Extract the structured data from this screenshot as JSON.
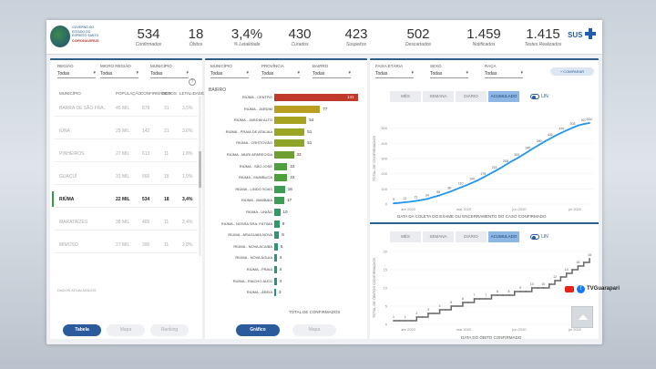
{
  "header": {
    "logo_text": "GOVERNO DO ESTADO DO ESPÍRITO SANTO",
    "logo_sub": "CORONAVÍRUS",
    "kpis": [
      {
        "value": "534",
        "label": "Confirmados"
      },
      {
        "value": "18",
        "label": "Óbitos"
      },
      {
        "value": "3,4%",
        "label": "% Letalidade"
      },
      {
        "value": "430",
        "label": "Curados"
      },
      {
        "value": "423",
        "label": "Suspeitos"
      },
      {
        "value": "502",
        "label": "Descartados"
      },
      {
        "value": "1.459",
        "label": "Notificados"
      },
      {
        "value": "1.415",
        "label": "Testes Realizados"
      }
    ],
    "sus_label": "SUS"
  },
  "left_panel": {
    "filters": [
      {
        "label": "REGIÃO",
        "value": "Todas"
      },
      {
        "label": "MICRO REGIÃO",
        "value": "Todas"
      },
      {
        "label": "MUNICÍPIO",
        "value": "Todas"
      }
    ],
    "columns": [
      "MUNICÍPIO",
      "POPULAÇÃO",
      "CONFIRMADOS",
      "ÓBITOS",
      "LETALIDADE"
    ],
    "rows": [
      {
        "name": "BARRA DE SÃO FRA...",
        "pop": "45 MIL",
        "conf": "878",
        "deaths": "31",
        "rate": "3,5%",
        "selected": false
      },
      {
        "name": "IÚNA",
        "pop": "29 MIL",
        "conf": "142",
        "deaths": "21",
        "rate": "3,6%",
        "selected": false
      },
      {
        "name": "PINHEIROS",
        "pop": "27 MIL",
        "conf": "613",
        "deaths": "11",
        "rate": "1,8%",
        "selected": false
      },
      {
        "name": "GUAÇUÍ",
        "pop": "31 MIL",
        "conf": "560",
        "deaths": "15",
        "rate": "1,9%",
        "selected": false
      },
      {
        "name": "RIÚMA",
        "pop": "22 MIL",
        "conf": "534",
        "deaths": "18",
        "rate": "3,4%",
        "selected": true
      },
      {
        "name": "MARATAÍZES",
        "pop": "38 MIL",
        "conf": "465",
        "deaths": "11",
        "rate": "2,4%",
        "selected": false
      },
      {
        "name": "MIMOSO",
        "pop": "27 MIL",
        "conf": "390",
        "deaths": "11",
        "rate": "2,8%",
        "selected": false
      }
    ],
    "footer_note": "DADOS ATUALIZADOS",
    "tabs": [
      "Tabela",
      "Mapa",
      "Ranking"
    ]
  },
  "middle_panel": {
    "filters": [
      {
        "label": "MUNICÍPIO",
        "value": "Todas"
      },
      {
        "label": "PROVÍNCIA",
        "value": "Todas"
      },
      {
        "label": "BAIRRO",
        "value": "Todas"
      }
    ],
    "section_title": "BAIRRO",
    "footer_label": "TOTAL DE CONFIRMADOS",
    "tabs": [
      "Gráfico",
      "Mapa"
    ]
  },
  "right_panel": {
    "filters": [
      {
        "label": "FAIXA ETÁRIA",
        "value": "Todas"
      },
      {
        "label": "SEXO",
        "value": "Todas"
      },
      {
        "label": "RAÇA",
        "value": "Todas"
      }
    ],
    "add_button": "+ COMPARAR",
    "top_tabs": [
      "MÊS",
      "SEMANA",
      "DIÁRIO",
      "ACUMULADO"
    ],
    "top_toggle": "LIN",
    "top_xlabel": "DATA DA COLETA DO EXAME OU ENCERRAMENTO DO CASO CONFIRMADO",
    "top_ylabel": "TOTAL DE CONFIRMADOS",
    "bottom_tabs": [
      "MÊS",
      "SEMANA",
      "DIÁRIO",
      "ACUMULADO"
    ],
    "bottom_toggle": "LIN",
    "bottom_xlabel": "DATA DO ÓBITO CONFIRMADO",
    "bottom_ylabel": "TOTAL DE ÓBITOS CONFIRMADOS"
  },
  "social": {
    "handle": "TVGuarapari"
  },
  "colors": {
    "header_blue": "#2d5f8b",
    "button_blue": "#2a5b9c",
    "bar_red": "#c0392b",
    "line_blue": "#2196f3",
    "line_gray": "#666666"
  },
  "chart_data": [
    {
      "type": "bar",
      "title": "BAIRRO",
      "xlabel": "TOTAL DE CONFIRMADOS",
      "categories": [
        "RIÚMA - CENTRO",
        "RIÚMA - JARDIM",
        "RIÚMA - JARDIM ALTO",
        "RIÚMA - PRAIA DE ATALAIA",
        "RIÚMA - CRISTOVÃO",
        "RIÚMA - MURI APARECIDA",
        "RIÚMA - SÃO JOSÉ",
        "RIÚMA - MUMBUCA",
        "RIÚMA - LINDO SOAS",
        "RIÚMA - BAMBAIA",
        "RIÚMA - UNIÃO",
        "RIÚMA - NOSSA SRA. FÁTIMA",
        "RIÚMA - ARAGUAIA NOVA",
        "RIÚMA - NOVA ACAIBA",
        "RIÚMA - NOVA ÁGUIA",
        "RIÚMA - PRAIA",
        "RIÚMA - RIACHO ALEG",
        "RIÚMA - ÁREIA"
      ],
      "values": [
        141,
        77,
        54,
        51,
        51,
        33,
        22,
        22,
        18,
        17,
        10,
        9,
        8,
        6,
        4,
        4,
        4,
        3
      ],
      "colors": [
        "#c0392b",
        "#b9a020",
        "#a7a321",
        "#9aa524",
        "#8ea428",
        "#6f9f33",
        "#4ea03f",
        "#4ea03f",
        "#3d9d52",
        "#3d9d52",
        "#2e9a64",
        "#2e9a64",
        "#2a9870",
        "#269877",
        "#23977c",
        "#23977c",
        "#21967f",
        "#209682"
      ]
    },
    {
      "type": "line",
      "title": "",
      "xlabel": "DATA DA COLETA DO EXAME OU ENCERRAMENTO DO CASO CONFIRMADO",
      "ylabel": "TOTAL DE CONFIRMADOS",
      "x_ticks": [
        "abr 2020",
        "mai 2020",
        "jun 2020",
        "jul 2020"
      ],
      "ylim": [
        0,
        600
      ],
      "y_ticks": [
        0,
        100,
        200,
        300,
        400,
        500
      ],
      "values": [
        5,
        8,
        12,
        16,
        21,
        27,
        34,
        45,
        55,
        68,
        80,
        95,
        110,
        124,
        140,
        156,
        175,
        195,
        215,
        235,
        258,
        280,
        300,
        322,
        345,
        368,
        390,
        412,
        432,
        452,
        470,
        487,
        503,
        518,
        527,
        534
      ],
      "point_labels": [
        5,
        8,
        12,
        16,
        21,
        27,
        34,
        45,
        55,
        68,
        80,
        95,
        110,
        124,
        140,
        156,
        175,
        195,
        215,
        235,
        258,
        280,
        300,
        322,
        345,
        368,
        390,
        412,
        432,
        452,
        470,
        487,
        503,
        518,
        527,
        534
      ]
    },
    {
      "type": "line",
      "title": "",
      "xlabel": "DATA DO ÓBITO CONFIRMADO",
      "ylabel": "TOTAL DE ÓBITOS CONFIRMADOS",
      "x_ticks": [
        "abr 2020",
        "mai 2020",
        "jun 2020",
        "jul 2020"
      ],
      "ylim": [
        0,
        20
      ],
      "y_ticks": [
        0,
        5,
        10,
        15,
        20
      ],
      "values": [
        1,
        1,
        1,
        1,
        2,
        2,
        3,
        3,
        4,
        4,
        5,
        5,
        6,
        6,
        7,
        7,
        7,
        8,
        8,
        8,
        8,
        9,
        9,
        9,
        10,
        10,
        10,
        11,
        12,
        13,
        14,
        15,
        16,
        17,
        18
      ],
      "point_labels": [
        1,
        1,
        1,
        1,
        2,
        2,
        3,
        3,
        4,
        4,
        5,
        5,
        6,
        6,
        7,
        7,
        7,
        8,
        8,
        8,
        8,
        9,
        9,
        9,
        10,
        10,
        10,
        11,
        12,
        13,
        14,
        15,
        16,
        17,
        18
      ]
    }
  ]
}
